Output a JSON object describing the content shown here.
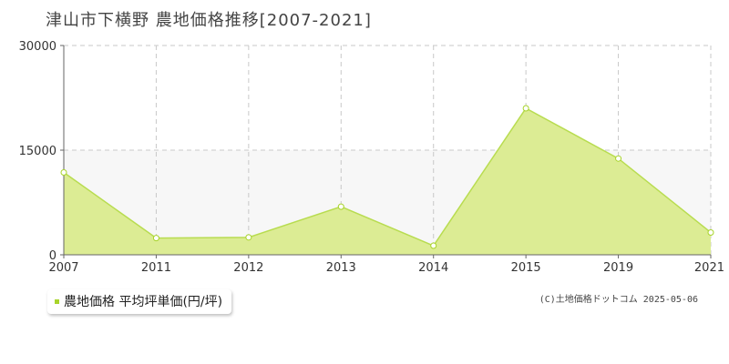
{
  "title": "津山市下横野 農地価格推移[2007-2021]",
  "legend": {
    "label": "農地価格 平均坪単価(円/坪)"
  },
  "copyright": "(C)土地価格ドットコム 2025-05-06",
  "colors": {
    "fill": "#dcec94",
    "line": "#b8dc50",
    "marker": "#a8d42a",
    "band": "#f7f7f7"
  },
  "chart_data": {
    "type": "area",
    "title": "津山市下横野 農地価格推移[2007-2021]",
    "categories": [
      "2007",
      "2011",
      "2012",
      "2013",
      "2014",
      "2015",
      "2019",
      "2021"
    ],
    "series": [
      {
        "name": "農地価格 平均坪単価(円/坪)",
        "values": [
          11800,
          2400,
          2500,
          6900,
          1300,
          21000,
          13800,
          3200
        ]
      }
    ],
    "yticks": [
      "0",
      "15000",
      "30000"
    ],
    "ylim": [
      0,
      30000
    ],
    "grid": true
  }
}
